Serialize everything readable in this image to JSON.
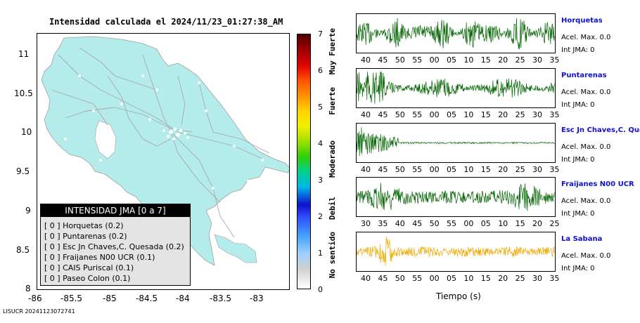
{
  "map": {
    "title": "Intensidad calculada el 2024/11/23_01:27:38_AM",
    "y_ticks": [
      "11",
      "10.5",
      "10",
      "9.5",
      "9",
      "8.5",
      "8"
    ],
    "x_ticks": [
      "-86",
      "-85.5",
      "-85",
      "-84.5",
      "-84",
      "-83.5",
      "-83"
    ],
    "land_color": "#b4ecec",
    "road_color": "#a8a8a8"
  },
  "legend": {
    "header": "INTENSIDAD JMA [0 a 7]",
    "rows": [
      {
        "level": "[ 0 ]",
        "label": "Horquetas (0.2)"
      },
      {
        "level": "[ 0 ]",
        "label": "Puntarenas (0.2)"
      },
      {
        "level": "[ 0 ]",
        "label": "Esc Jn Chaves,C. Quesada (0.2)"
      },
      {
        "level": "[ 0 ]",
        "label": "Fraijanes N00 UCR (0.1)"
      },
      {
        "level": "[ 0 ]",
        "label": "CAIS Puriscal (0.1)"
      },
      {
        "level": "[ 0 ]",
        "label": "Paseo Colon (0.1)"
      }
    ]
  },
  "colorbar": {
    "ticks": [
      "7",
      "6",
      "5",
      "4",
      "3",
      "2",
      "1",
      "0"
    ],
    "labels": [
      "Muy Fuerte",
      "Fuerte",
      "Moderado",
      "Debil",
      "No sentido"
    ]
  },
  "stations": [
    {
      "name": "Horquetas",
      "acc": "Acel. Max. 0.0",
      "jma": "Int JMA: 0",
      "color": "#006400",
      "ticks": [
        "40",
        "45",
        "50",
        "55",
        "00",
        "05",
        "10",
        "15",
        "20",
        "25",
        "30",
        "35"
      ]
    },
    {
      "name": "Puntarenas",
      "acc": "Acel. Max. 0.0",
      "jma": "Int JMA: 0",
      "color": "#006400",
      "ticks": [
        "40",
        "45",
        "50",
        "55",
        "00",
        "05",
        "10",
        "15",
        "20",
        "25",
        "30",
        "35"
      ]
    },
    {
      "name": "Esc Jn Chaves,C. Ques",
      "acc": "Acel. Max. 0.0",
      "jma": "Int JMA: 0",
      "color": "#006400",
      "ticks": [
        "40",
        "45",
        "50",
        "55",
        "00",
        "05",
        "10",
        "15",
        "20",
        "25",
        "30",
        "35"
      ]
    },
    {
      "name": "Fraijanes N00 UCR",
      "acc": "Acel. Max. 0.0",
      "jma": "Int JMA: 0",
      "color": "#006400",
      "ticks": [
        "30",
        "35",
        "40",
        "45",
        "50",
        "55",
        "00",
        "05",
        "10",
        "15",
        "20",
        "25"
      ]
    },
    {
      "name": "La Sabana",
      "acc": "Acel. Max. 0.0",
      "jma": "Int JMA: 0",
      "color": "#f0a800",
      "ticks": [
        "40",
        "45",
        "50",
        "55",
        "00",
        "05",
        "10",
        "15",
        "20",
        "25",
        "30",
        "35"
      ]
    }
  ],
  "time_axis_label": "Tiempo (s)",
  "footer": "LISUCR 20241123072741"
}
